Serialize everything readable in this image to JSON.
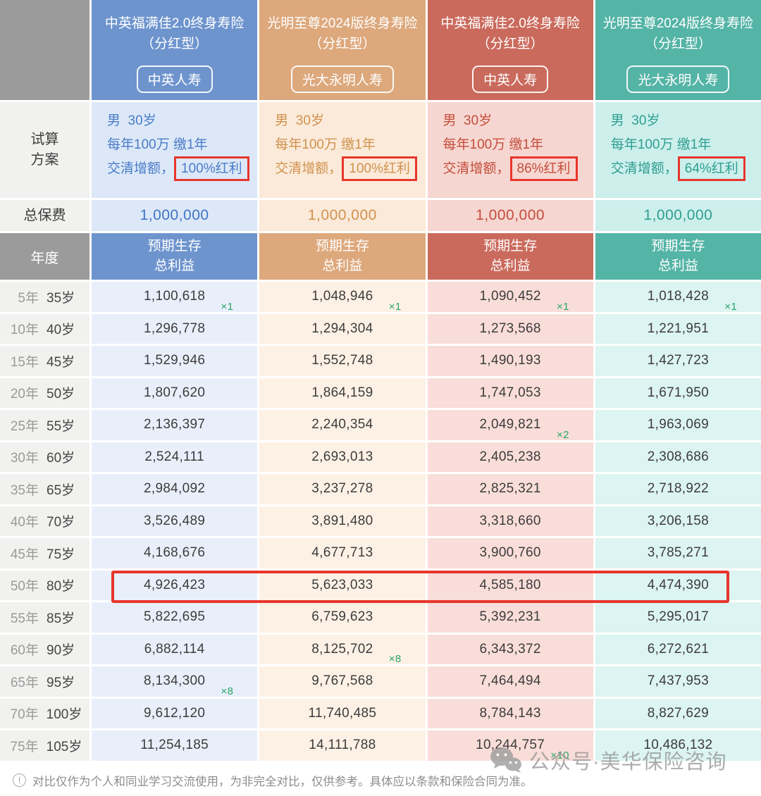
{
  "columns": [
    {
      "name": "中英福满佳2.0终身寿险（分红型）",
      "company": "中英人寿",
      "header_bg": "#6e94ce",
      "tint": "#dce8f8",
      "data_tint": "#e9effa",
      "accent_text": "#4a7cc7"
    },
    {
      "name": "光明至尊2024版终身寿险（分红型）",
      "company": "光大永明人寿",
      "header_bg": "#dda87c",
      "tint": "#fbead9",
      "data_tint": "#fdf1e5",
      "accent_text": "#d0924f"
    },
    {
      "name": "中英福满佳2.0终身寿险（分红型）",
      "company": "中英人寿",
      "header_bg": "#ca6a5c",
      "tint": "#f6d6d0",
      "data_tint": "#f9ddd8",
      "accent_text": "#c44d3d"
    },
    {
      "name": "光明至尊2024版终身寿险（分红型）",
      "company": "光大永明人寿",
      "header_bg": "#54b4a6",
      "tint": "#ccefec",
      "data_tint": "#dcf4f2",
      "accent_text": "#2f9e8f"
    }
  ],
  "plan": {
    "label_line1": "试算",
    "label_line2": "方案",
    "line1": "男  30岁",
    "line2": "每年100万 缴1年",
    "line3_prefix": "交清增额，",
    "dividends": [
      "100%红利",
      "100%红利",
      "86%红利",
      "64%红利"
    ]
  },
  "premium": {
    "label": "总保费",
    "values": [
      "1,000,000",
      "1,000,000",
      "1,000,000",
      "1,000,000"
    ]
  },
  "table": {
    "year_header": "年度",
    "benefit_header_line1": "预期生存",
    "benefit_header_line2": "总利益",
    "rows": [
      {
        "term": "5年",
        "age": "35岁",
        "values": [
          "1,100,618",
          "1,048,946",
          "1,090,452",
          "1,018,428"
        ],
        "notes": [
          "×1",
          "×1",
          "×1",
          "×1"
        ],
        "highlighted": false
      },
      {
        "term": "10年",
        "age": "40岁",
        "values": [
          "1,296,778",
          "1,294,304",
          "1,273,568",
          "1,221,951"
        ],
        "notes": [
          null,
          null,
          null,
          null
        ],
        "highlighted": false
      },
      {
        "term": "15年",
        "age": "45岁",
        "values": [
          "1,529,946",
          "1,552,748",
          "1,490,193",
          "1,427,723"
        ],
        "notes": [
          null,
          null,
          null,
          null
        ],
        "highlighted": false
      },
      {
        "term": "20年",
        "age": "50岁",
        "values": [
          "1,807,620",
          "1,864,159",
          "1,747,053",
          "1,671,950"
        ],
        "notes": [
          null,
          null,
          null,
          null
        ],
        "highlighted": false
      },
      {
        "term": "25年",
        "age": "55岁",
        "values": [
          "2,136,397",
          "2,240,354",
          "2,049,821",
          "1,963,069"
        ],
        "notes": [
          null,
          null,
          "×2",
          null
        ],
        "highlighted": false
      },
      {
        "term": "30年",
        "age": "60岁",
        "values": [
          "2,524,111",
          "2,693,013",
          "2,405,238",
          "2,308,686"
        ],
        "notes": [
          null,
          null,
          null,
          null
        ],
        "highlighted": false
      },
      {
        "term": "35年",
        "age": "65岁",
        "values": [
          "2,984,092",
          "3,237,278",
          "2,825,321",
          "2,718,922"
        ],
        "notes": [
          null,
          null,
          null,
          null
        ],
        "highlighted": false
      },
      {
        "term": "40年",
        "age": "70岁",
        "values": [
          "3,526,489",
          "3,891,480",
          "3,318,660",
          "3,206,158"
        ],
        "notes": [
          null,
          null,
          null,
          null
        ],
        "highlighted": false
      },
      {
        "term": "45年",
        "age": "75岁",
        "values": [
          "4,168,676",
          "4,677,713",
          "3,900,760",
          "3,785,271"
        ],
        "notes": [
          null,
          null,
          null,
          null
        ],
        "highlighted": false
      },
      {
        "term": "50年",
        "age": "80岁",
        "values": [
          "4,926,423",
          "5,623,033",
          "4,585,180",
          "4,474,390"
        ],
        "notes": [
          null,
          null,
          null,
          null
        ],
        "highlighted": true
      },
      {
        "term": "55年",
        "age": "85岁",
        "values": [
          "5,822,695",
          "6,759,623",
          "5,392,231",
          "5,295,017"
        ],
        "notes": [
          null,
          null,
          null,
          null
        ],
        "highlighted": false
      },
      {
        "term": "60年",
        "age": "90岁",
        "values": [
          "6,882,114",
          "8,125,702",
          "6,343,372",
          "6,272,621"
        ],
        "notes": [
          null,
          "×8",
          null,
          null
        ],
        "highlighted": false
      },
      {
        "term": "65年",
        "age": "95岁",
        "values": [
          "8,134,300",
          "9,767,568",
          "7,464,494",
          "7,437,953"
        ],
        "notes": [
          "×8",
          null,
          null,
          null
        ],
        "highlighted": false
      },
      {
        "term": "70年",
        "age": "100岁",
        "values": [
          "9,612,120",
          "11,740,485",
          "8,784,143",
          "8,827,629"
        ],
        "notes": [
          null,
          null,
          null,
          null
        ],
        "highlighted": false
      },
      {
        "term": "75年",
        "age": "105岁",
        "values": [
          "11,254,185",
          "14,111,788",
          "10,244,757",
          "10,486,132"
        ],
        "notes": [
          null,
          null,
          "×10",
          null
        ],
        "highlighted": false
      }
    ]
  },
  "highlight_box_color": "#e8362d",
  "note_color": "#27a567",
  "footer": {
    "icon": "!",
    "text": "对比仅作为个人和同业学习交流使用，为非完全对比，仅供参考。具体应以条款和保险合同为准。"
  },
  "watermark": {
    "text": "公众号·美华保险咨询"
  }
}
